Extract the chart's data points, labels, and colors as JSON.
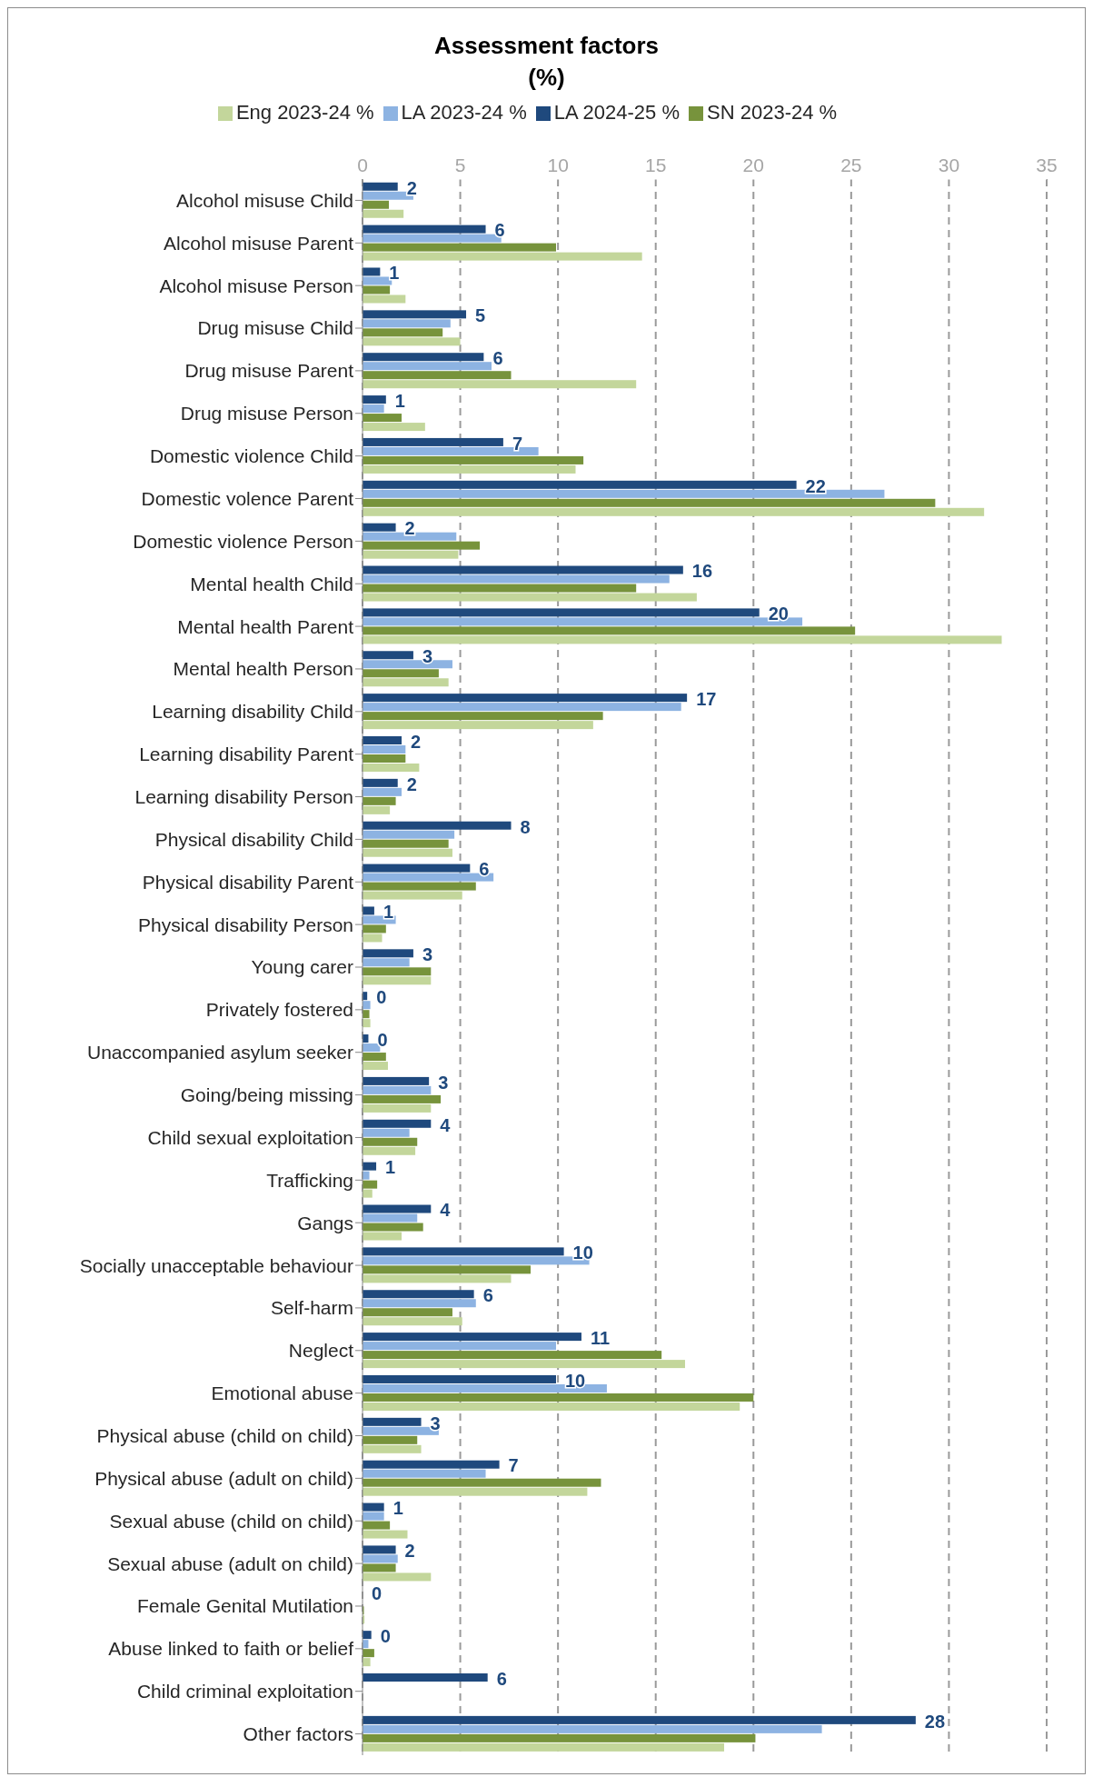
{
  "chart_data": {
    "type": "bar",
    "orientation": "horizontal",
    "title": "Assessment factors",
    "subtitle": "(%)",
    "categories": [
      "Alcohol misuse Child",
      "Alcohol misuse Parent",
      "Alcohol misuse Person",
      "Drug misuse Child",
      "Drug misuse Parent",
      "Drug misuse Person",
      "Domestic violence Child",
      "Domestic volence Parent",
      "Domestic violence Person",
      "Mental health Child",
      "Mental health Parent",
      "Mental health Person",
      "Learning disability Child",
      "Learning disability Parent",
      "Learning disability Person",
      "Physical disability Child",
      "Physical disability Parent",
      "Physical disability Person",
      "Young carer",
      "Privately fostered",
      "Unaccompanied asylum seeker",
      "Going/being missing",
      "Child sexual exploitation",
      "Trafficking",
      "Gangs",
      "Socially unacceptable behaviour",
      "Self-harm",
      "Neglect",
      "Emotional abuse",
      "Physical abuse (child on child)",
      "Physical abuse (adult on child)",
      "Sexual abuse (child on child)",
      "Sexual abuse (adult on child)",
      "Female Genital Mutilation",
      "Abuse linked to faith or belief",
      "Child criminal exploitation",
      "Other factors"
    ],
    "series": [
      {
        "name": "LA 2024-25 %",
        "color": "#1f497d",
        "values": [
          1.8,
          6.3,
          0.9,
          5.3,
          6.2,
          1.2,
          7.2,
          22.2,
          1.7,
          16.4,
          20.3,
          2.6,
          16.6,
          2.0,
          1.8,
          7.6,
          5.5,
          0.6,
          2.6,
          0.24,
          0.3,
          3.4,
          3.5,
          0.7,
          3.5,
          10.3,
          5.7,
          11.2,
          9.9,
          3.0,
          7.0,
          1.1,
          1.7,
          0,
          0.45,
          6.4,
          28.3
        ],
        "value_labels": [
          "2",
          "6",
          "1",
          "5",
          "6",
          "1",
          "7",
          "22",
          "2",
          "16",
          "20",
          "3",
          "17",
          "2",
          "2",
          "8",
          "6",
          "1",
          "3",
          "0",
          "0",
          "3",
          "4",
          "1",
          "4",
          "10",
          "6",
          "11",
          "10",
          "3",
          "7",
          "1",
          "2",
          "0",
          "0",
          "6",
          "28"
        ]
      },
      {
        "name": "LA 2023-24 %",
        "color": "#8db3e2",
        "values": [
          2.6,
          7.1,
          1.5,
          4.5,
          6.6,
          1.1,
          9.0,
          26.7,
          4.8,
          15.7,
          22.5,
          4.6,
          16.3,
          2.2,
          2.0,
          4.7,
          6.7,
          1.7,
          2.4,
          0.4,
          0.9,
          3.5,
          2.4,
          0.35,
          2.8,
          11.6,
          5.8,
          9.9,
          12.5,
          3.9,
          6.3,
          1.1,
          1.8,
          0,
          0.3,
          null,
          23.5
        ]
      },
      {
        "name": "SN 2023-24 %",
        "color": "#77933c",
        "values": [
          1.35,
          9.9,
          1.4,
          4.1,
          7.6,
          2.0,
          11.3,
          29.3,
          6.0,
          14.0,
          25.2,
          3.9,
          12.3,
          2.2,
          1.7,
          4.4,
          5.8,
          1.2,
          3.5,
          0.35,
          1.2,
          4.0,
          2.8,
          0.75,
          3.1,
          8.6,
          4.6,
          15.3,
          20.0,
          2.8,
          12.2,
          1.4,
          1.7,
          0.07,
          0.6,
          null,
          20.1
        ]
      },
      {
        "name": "Eng 2023-24 %",
        "color": "#c3d69b",
        "values": [
          2.1,
          14.3,
          2.2,
          5.0,
          14.0,
          3.2,
          10.9,
          31.8,
          4.9,
          17.1,
          32.7,
          4.4,
          11.8,
          2.9,
          1.4,
          4.6,
          5.1,
          1.0,
          3.5,
          0.4,
          1.3,
          3.5,
          2.7,
          0.5,
          2.0,
          7.6,
          5.1,
          16.5,
          19.3,
          3.0,
          11.5,
          2.3,
          3.5,
          0.1,
          0.4,
          null,
          18.5
        ]
      }
    ],
    "xlim": [
      0,
      35
    ],
    "xticks": [
      0,
      5,
      10,
      15,
      20,
      25,
      30,
      35
    ],
    "grid": "x",
    "legend": "top"
  }
}
